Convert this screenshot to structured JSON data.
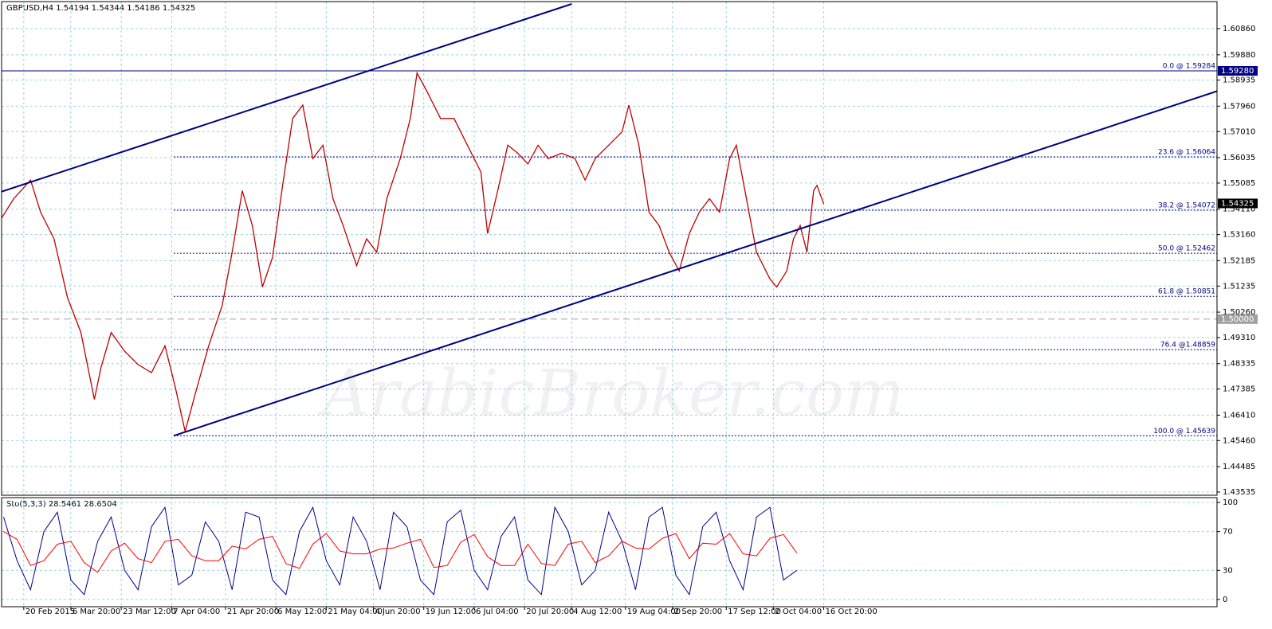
{
  "watermark": "ArabicBroker.com",
  "chart_data": [
    {
      "type": "line",
      "title": "GBPUSD,H4  1.54194 1.54344 1.54186 1.54325",
      "xlim": [
        -6.6,
        355
      ],
      "ylim": [
        1.43416,
        1.61869
      ],
      "grid": true,
      "color": "#c00000",
      "xticks": [
        {
          "value": 0,
          "label": "20 Feb 2015"
        },
        {
          "value": 14,
          "label": "6 Mar 20:00"
        },
        {
          "value": 29,
          "label": "23 Mar 12:00"
        },
        {
          "value": 44,
          "label": "7 Apr 04:00"
        },
        {
          "value": 60,
          "label": "21 Apr 20:00"
        },
        {
          "value": 75,
          "label": "6 May 12:00"
        },
        {
          "value": 90,
          "label": "21 May 04:00"
        },
        {
          "value": 104,
          "label": "4 Jun 20:00"
        },
        {
          "value": 119,
          "label": "19 Jun 12:00"
        },
        {
          "value": 134,
          "label": "6 Jul 04:00"
        },
        {
          "value": 149,
          "label": "20 Jul 20:00"
        },
        {
          "value": 163,
          "label": "4 Aug 12:00"
        },
        {
          "value": 179,
          "label": "19 Aug 04:00"
        },
        {
          "value": 193,
          "label": "2 Sep 20:00"
        },
        {
          "value": 209,
          "label": "17 Sep 12:00"
        },
        {
          "value": 223,
          "label": "2 Oct 04:00"
        },
        {
          "value": 238,
          "label": "16 Oct 20:00"
        }
      ],
      "yticks": [
        {
          "value": 1.6086,
          "label": "1.60860"
        },
        {
          "value": 1.5988,
          "label": "1.59880"
        },
        1.58935,
        {
          "value": 1.5796,
          "label": "1.57960"
        },
        {
          "value": 1.5701,
          "label": "1.57010"
        },
        1.56035,
        1.55085,
        {
          "value": 1.5411,
          "label": "1.54110"
        },
        {
          "value": 1.5316,
          "label": "1.53160"
        },
        1.52185,
        1.51235,
        {
          "value": 1.5026,
          "label": "1.50260"
        },
        {
          "value": 1.4931,
          "label": "1.49310"
        },
        1.48335,
        1.47385,
        {
          "value": 1.4641,
          "label": "1.46410"
        },
        {
          "value": 1.4546,
          "label": "1.45460"
        },
        1.44485,
        1.43535
      ],
      "x": [
        -7,
        -3,
        2,
        5,
        9,
        13,
        17,
        21,
        23,
        26,
        30,
        34,
        38,
        42,
        45,
        48,
        51,
        55,
        59,
        62,
        65,
        68,
        71,
        74,
        77,
        80,
        83,
        86,
        89,
        92,
        95,
        99,
        102,
        105,
        108,
        112,
        115,
        117,
        120,
        124,
        128,
        132,
        136,
        138,
        141,
        144,
        147,
        150,
        153,
        156,
        160,
        164,
        167,
        170,
        174,
        178,
        180,
        183,
        186,
        189,
        192,
        195,
        198,
        201,
        204,
        207,
        210,
        212,
        215,
        218,
        222,
        224,
        227,
        229,
        231,
        233,
        235,
        236,
        238
      ],
      "values": [
        1.537,
        1.545,
        1.552,
        1.54,
        1.53,
        1.508,
        1.495,
        1.47,
        1.482,
        1.495,
        1.488,
        1.483,
        1.48,
        1.49,
        1.475,
        1.458,
        1.472,
        1.49,
        1.505,
        1.525,
        1.548,
        1.535,
        1.512,
        1.523,
        1.55,
        1.575,
        1.58,
        1.56,
        1.565,
        1.545,
        1.535,
        1.52,
        1.53,
        1.525,
        1.545,
        1.56,
        1.575,
        1.592,
        1.585,
        1.575,
        1.575,
        1.565,
        1.555,
        1.532,
        1.548,
        1.565,
        1.562,
        1.558,
        1.565,
        1.56,
        1.562,
        1.56,
        1.552,
        1.56,
        1.565,
        1.57,
        1.58,
        1.565,
        1.54,
        1.535,
        1.525,
        1.518,
        1.532,
        1.54,
        1.545,
        1.54,
        1.56,
        1.565,
        1.545,
        1.525,
        1.515,
        1.512,
        1.518,
        1.53,
        1.535,
        1.525,
        1.548,
        1.55,
        1.543
      ],
      "trendlines": [
        {
          "x": [
            -7,
            163
          ],
          "y": [
            1.5475,
            1.6178
          ]
        },
        {
          "x": [
            44.6,
            355
          ],
          "y": [
            1.4564,
            1.5852
          ]
        }
      ],
      "trendline_color": "#000080",
      "fib_start": 44.6,
      "fib_levels": [
        {
          "value": 1.56064,
          "label": "23.6 @ 1.56064"
        },
        {
          "value": 1.54072,
          "label": "38.2 @ 1.54072"
        },
        {
          "value": 1.52462,
          "label": "50.0 @ 1.52462"
        },
        {
          "value": 1.50851,
          "label": "61.8 @ 1.50851"
        },
        {
          "value": 1.48859,
          "label": "76.4 @1.48859"
        },
        {
          "value": 1.45639,
          "label": "100.0 @ 1.45639"
        }
      ],
      "fib_top": {
        "value": 1.59284,
        "label": "0.0 @ 1.59284"
      },
      "price_markers": [
        {
          "value": 1.5928,
          "label": "1.59280",
          "line": "solid",
          "bg": "#000080"
        },
        {
          "value": 1.54325,
          "label": "1.54325",
          "line": "none",
          "bg": "#000000"
        },
        {
          "value": 1.5,
          "label": "1.50000",
          "line": "dashed",
          "bg": "#a0a0a0"
        }
      ]
    },
    {
      "type": "line",
      "title": "Sto(5,3,3) 28.5461 28.6504",
      "xlim": [
        -6.6,
        355
      ],
      "ylim": [
        -7.5,
        105
      ],
      "yticks": [
        100,
        70,
        30,
        0
      ],
      "grid": true,
      "x": [
        -6,
        -2,
        2,
        6,
        10,
        14,
        18,
        22,
        26,
        30,
        34,
        38,
        42,
        46,
        50,
        54,
        58,
        62,
        66,
        70,
        74,
        78,
        82,
        86,
        90,
        94,
        98,
        102,
        106,
        110,
        114,
        118,
        122,
        126,
        130,
        134,
        138,
        142,
        146,
        150,
        154,
        158,
        162,
        166,
        170,
        174,
        178,
        182,
        186,
        190,
        194,
        198,
        202,
        206,
        210,
        214,
        218,
        222,
        226,
        230
      ],
      "series": [
        {
          "color": "#00008b",
          "values": [
            85,
            40,
            10,
            70,
            90,
            20,
            5,
            60,
            85,
            30,
            10,
            75,
            95,
            15,
            25,
            80,
            60,
            10,
            90,
            85,
            20,
            5,
            70,
            95,
            40,
            15,
            85,
            60,
            10,
            90,
            75,
            20,
            5,
            80,
            92,
            30,
            10,
            65,
            85,
            20,
            5,
            95,
            70,
            15,
            30,
            90,
            60,
            10,
            85,
            95,
            25,
            5,
            75,
            90,
            40,
            10,
            85,
            95,
            20,
            30
          ]
        },
        {
          "color": "#ff0000",
          "values": [
            70,
            62,
            35,
            40,
            57,
            60,
            38,
            28,
            50,
            58,
            42,
            38,
            60,
            62,
            45,
            40,
            40,
            55,
            52,
            62,
            65,
            37,
            32,
            57,
            68,
            50,
            47,
            47,
            52,
            53,
            58,
            62,
            33,
            35,
            59,
            67,
            44,
            35,
            35,
            57,
            37,
            35,
            57,
            60,
            38,
            45,
            60,
            53,
            52,
            63,
            68,
            42,
            58,
            57,
            68,
            47,
            45,
            63,
            67,
            48
          ]
        }
      ]
    }
  ]
}
